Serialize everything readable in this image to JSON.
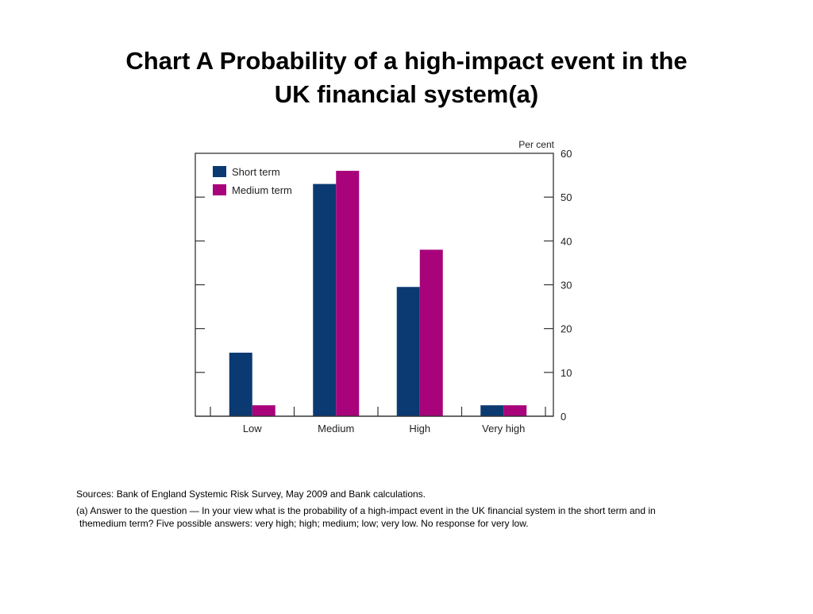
{
  "title": {
    "line1": "Chart A  Probability of a high-impact event in the",
    "line2": "UK financial system(a)"
  },
  "chart_data": {
    "type": "bar",
    "categories": [
      "Low",
      "Medium",
      "High",
      "Very high"
    ],
    "series": [
      {
        "name": "Short term",
        "values": [
          14.5,
          53,
          29.5,
          2.5
        ],
        "color": "#0b3a73"
      },
      {
        "name": "Medium term",
        "values": [
          2.5,
          56,
          38,
          2.5
        ],
        "color": "#a8037a"
      }
    ],
    "ylabel": "Per cent",
    "ylim": [
      0,
      60
    ],
    "yticks": [
      0,
      10,
      20,
      30,
      40,
      50,
      60
    ],
    "grid": false,
    "legend": "top-left",
    "y_axis_side": "right"
  },
  "notes": {
    "sources": "Sources:  Bank of England Systemic Risk Survey, May 2009 and Bank calculations.",
    "note_a_line1": "(a) Answer to the question — In your view what is the probability of a high-impact event in the UK financial system in the short term and in",
    "note_a_line2": "themedium term?  Five possible answers:  very high;  high;  medium;  low;  very low.  No response for very low."
  }
}
